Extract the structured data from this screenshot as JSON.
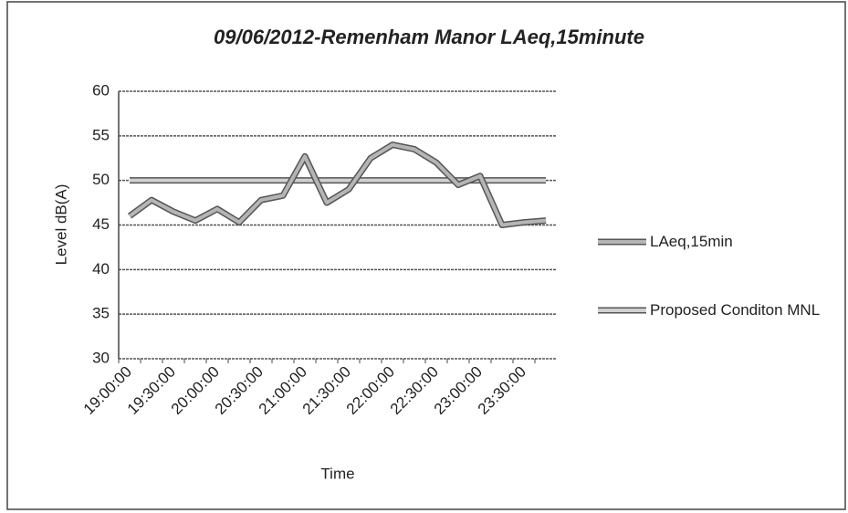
{
  "chart_data": {
    "type": "line",
    "title": "09/06/2012-Remenham Manor LAeq,15minute",
    "x_label": "Time",
    "y_label": "Level dB(A)",
    "categories": [
      "19:00:00",
      null,
      "19:30:00",
      null,
      "20:00:00",
      null,
      "20:30:00",
      null,
      "21:00:00",
      null,
      "21:30:00",
      null,
      "22:00:00",
      null,
      "22:30:00",
      null,
      "23:00:00",
      null,
      "23:30:00",
      null
    ],
    "series": [
      {
        "name": "LAeq,15min",
        "color": "#b5b5b5",
        "values": [
          46,
          47.8,
          46.5,
          45.5,
          46.8,
          45.3,
          47.8,
          48.3,
          52.7,
          47.5,
          49,
          52.5,
          54,
          53.5,
          52,
          49.5,
          50.5,
          45,
          45.3,
          45.5
        ]
      },
      {
        "name": "Proposed Conditon MNL",
        "color": "#d0d0d0",
        "values": [
          50,
          50,
          50,
          50,
          50,
          50,
          50,
          50,
          50,
          50,
          50,
          50,
          50,
          50,
          50,
          50,
          50,
          50,
          50,
          50
        ]
      }
    ],
    "ylim": [
      30,
      60
    ],
    "yticks": [
      30,
      35,
      40,
      45,
      50,
      55,
      60
    ],
    "grid": true,
    "legend": "right"
  }
}
